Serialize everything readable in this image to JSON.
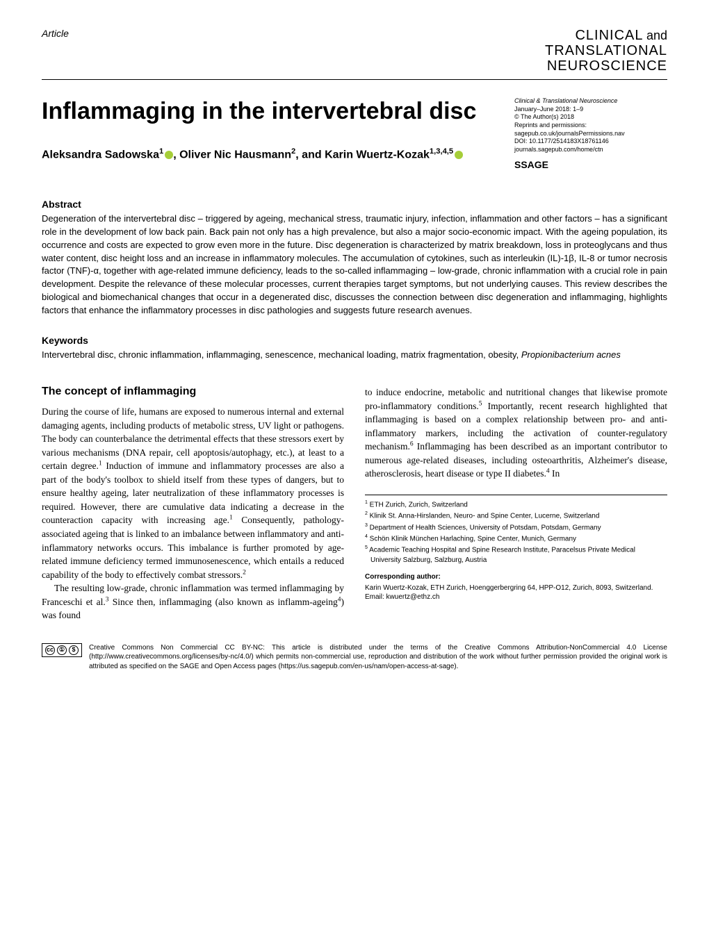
{
  "header": {
    "article_label": "Article",
    "journal_logo": {
      "line1": "CLINICAL",
      "and": "and",
      "line2": "TRANSLATIONAL",
      "line3": "NEUROSCIENCE"
    }
  },
  "title": "Inflammaging in the intervertebral disc",
  "authors_html": "Aleksandra Sadowska<sup>1</sup><span class=\"orcid\"></span>, Oliver Nic Hausmann<sup>2</sup>, and Karin Wuertz-Kozak<sup>1,3,4,5</sup><span class=\"orcid\"></span>",
  "journal_meta": {
    "journal_title": "Clinical & Translational Neuroscience",
    "date_pages": "January–June 2018: 1–9",
    "copyright": "© The Author(s) 2018",
    "reprints": "Reprints and permissions:",
    "reprints_url": "sagepub.co.uk/journalsPermissions.nav",
    "doi": "DOI: 10.1177/2514183X18761146",
    "journal_url": "journals.sagepub.com/home/ctn",
    "publisher": "SSAGE"
  },
  "abstract": {
    "heading": "Abstract",
    "text": "Degeneration of the intervertebral disc – triggered by ageing, mechanical stress, traumatic injury, infection, inflammation and other factors – has a significant role in the development of low back pain. Back pain not only has a high prevalence, but also a major socio-economic impact. With the ageing population, its occurrence and costs are expected to grow even more in the future. Disc degeneration is characterized by matrix breakdown, loss in proteoglycans and thus water content, disc height loss and an increase in inflammatory molecules. The accumulation of cytokines, such as interleukin (IL)-1β, IL-8 or tumor necrosis factor (TNF)-α, together with age-related immune deficiency, leads to the so-called inflammaging – low-grade, chronic inflammation with a crucial role in pain development. Despite the relevance of these molecular processes, current therapies target symptoms, but not underlying causes. This review describes the biological and biomechanical changes that occur in a degenerated disc, discusses the connection between disc degeneration and inflammaging, highlights factors that enhance the inflammatory processes in disc pathologies and suggests future research avenues."
  },
  "keywords": {
    "heading": "Keywords",
    "text_html": "Intervertebral disc, chronic inflammation, inflammaging, senescence, mechanical loading, matrix fragmentation, obesity, <span class=\"italic\">Propionibacterium acnes</span>"
  },
  "section_heading": "The concept of inflammaging",
  "col1": {
    "p1": "During the course of life, humans are exposed to numerous internal and external damaging agents, including products of metabolic stress, UV light or pathogens. The body can counterbalance the detrimental effects that these stressors exert by various mechanisms (DNA repair, cell apoptosis/autophagy, etc.), at least to a certain degree.<sup>1</sup> Induction of immune and inflammatory processes are also a part of the body's toolbox to shield itself from these types of dangers, but to ensure healthy ageing, later neutralization of these inflammatory processes is required. However, there are cumulative data indicating a decrease in the counteraction capacity with increasing age.<sup>1</sup> Consequently, pathology-associated ageing that is linked to an imbalance between inflammatory and anti-inflammatory networks occurs. This imbalance is further promoted by age-related immune deficiency termed immunosenescence, which entails a reduced capability of the body to effectively combat stressors.<sup>2</sup>",
    "p2": "The resulting low-grade, chronic inflammation was termed inflammaging by Franceschi et al.<sup>3</sup> Since then, inflammaging (also known as inflamm-ageing<sup>4</sup>) was found"
  },
  "col2": {
    "p1": "to induce endocrine, metabolic and nutritional changes that likewise promote pro-inflammatory conditions.<sup>5</sup> Importantly, recent research highlighted that inflammaging is based on a complex relationship between pro- and anti-inflammatory markers, including the activation of counter-regulatory mechanism.<sup>6</sup> Inflammaging has been described as an important contributor to numerous age-related diseases, including osteoarthritis, Alzheimer's disease, atherosclerosis, heart disease or type II diabetes.<sup>4</sup> In"
  },
  "affiliations": [
    "<sup>1</sup> ETH Zurich, Zurich, Switzerland",
    "<sup>2</sup> Klinik St. Anna-Hirslanden, Neuro- and Spine Center, Lucerne, Switzerland",
    "<sup>3</sup> Department of Health Sciences, University of Potsdam, Potsdam, Germany",
    "<sup>4</sup> Schön Klinik München Harlaching, Spine Center, Munich, Germany",
    "<sup>5</sup> Academic Teaching Hospital and Spine Research Institute, Paracelsus Private Medical University Salzburg, Salzburg, Austria"
  ],
  "corresponding": {
    "heading": "Corresponding author:",
    "text": "Karin Wuertz-Kozak, ETH Zurich, Hoenggerbergring 64, HPP-O12, Zurich, 8093, Switzerland.",
    "email": "Email: kwuertz@ethz.ch"
  },
  "license": {
    "badge_cc": "cc",
    "badge_by": "BY",
    "badge_nc": "NC",
    "text": "Creative Commons Non Commercial CC BY-NC: This article is distributed under the terms of the Creative Commons Attribution-NonCommercial 4.0 License (http://www.creativecommons.org/licenses/by-nc/4.0/) which permits non-commercial use, reproduction and distribution of the work without further permission provided the original work is attributed as specified on the SAGE and Open Access pages (https://us.sagepub.com/en-us/nam/open-access-at-sage)."
  },
  "colors": {
    "background": "#ffffff",
    "text": "#000000",
    "orcid": "#a6ce39",
    "divider": "#000000"
  },
  "typography": {
    "body_font": "Georgia, Times New Roman, serif",
    "heading_font": "Arial, sans-serif",
    "title_fontsize": 34,
    "section_heading_fontsize": 16,
    "abstract_heading_fontsize": 14,
    "body_fontsize": 13.5,
    "abstract_fontsize": 13,
    "meta_fontsize": 9,
    "affil_fontsize": 10
  }
}
